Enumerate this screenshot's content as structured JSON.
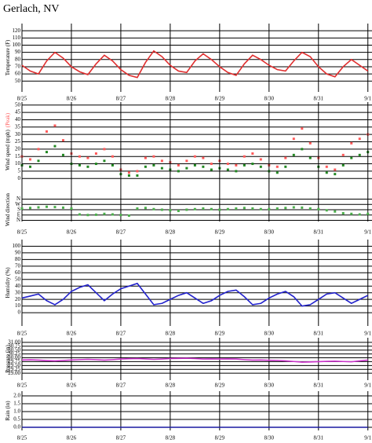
{
  "title": "Gerlach, NV",
  "chart_data": [
    {
      "type": "line",
      "ylabel": "Temperature (F)",
      "x": [
        0,
        4,
        8,
        12,
        16,
        20,
        24,
        28,
        32,
        36,
        40,
        44,
        48,
        52,
        56,
        60,
        64,
        68,
        72,
        76,
        80,
        84,
        88,
        92,
        96,
        100,
        104,
        108,
        112,
        116,
        120,
        124,
        128,
        132,
        136,
        140,
        144,
        148,
        152,
        156,
        160,
        164,
        168
      ],
      "series": [
        {
          "color": "#e03030",
          "values": [
            72,
            64,
            60,
            78,
            90,
            82,
            70,
            63,
            59,
            74,
            86,
            78,
            66,
            58,
            55,
            76,
            92,
            84,
            72,
            64,
            62,
            78,
            88,
            80,
            70,
            62,
            58,
            74,
            86,
            80,
            72,
            66,
            64,
            78,
            90,
            84,
            70,
            60,
            56,
            70,
            80,
            72,
            64
          ]
        }
      ],
      "xlim": [
        0,
        170
      ],
      "xticks": [
        {
          "value": 0,
          "label": "8/25"
        },
        {
          "value": 24,
          "label": "8/26"
        },
        {
          "value": 48,
          "label": "8/27"
        },
        {
          "value": 72,
          "label": "8/28"
        },
        {
          "value": 96,
          "label": "8/29"
        },
        {
          "value": 120,
          "label": "8/30"
        },
        {
          "value": 144,
          "label": "8/31"
        },
        {
          "value": 168,
          "label": "9/1"
        }
      ],
      "ylim": [
        35,
        130
      ],
      "yticks": [
        50,
        60,
        70,
        80,
        90,
        100,
        110,
        120
      ]
    },
    {
      "type": "scatter",
      "ylabel": "Wind speed (mph)",
      "x": [
        0,
        4,
        8,
        12,
        16,
        20,
        24,
        28,
        32,
        36,
        40,
        44,
        48,
        52,
        56,
        60,
        64,
        68,
        72,
        76,
        80,
        84,
        88,
        92,
        96,
        100,
        104,
        108,
        112,
        116,
        120,
        124,
        128,
        132,
        136,
        140,
        144,
        148,
        152,
        156,
        160,
        164,
        168
      ],
      "series": [
        {
          "color": "#228822",
          "values": [
            9,
            8,
            12,
            18,
            22,
            16,
            10,
            9,
            8,
            10,
            12,
            9,
            3,
            2,
            2,
            8,
            9,
            7,
            6,
            5,
            7,
            9,
            8,
            6,
            7,
            6,
            5,
            9,
            10,
            8,
            5,
            4,
            8,
            16,
            20,
            14,
            8,
            4,
            3,
            9,
            14,
            16,
            18
          ]
        },
        {
          "name": "(Peak)",
          "color": "#ff5a5a",
          "values": [
            15,
            13,
            20,
            32,
            36,
            26,
            17,
            15,
            14,
            17,
            20,
            15,
            6,
            4,
            5,
            14,
            15,
            12,
            11,
            9,
            12,
            15,
            14,
            10,
            12,
            10,
            9,
            15,
            17,
            13,
            9,
            8,
            14,
            27,
            34,
            24,
            14,
            8,
            6,
            16,
            24,
            27,
            30
          ]
        }
      ],
      "xlim": [
        0,
        170
      ],
      "ylim": [
        -2,
        52
      ],
      "yticks": [
        0,
        5,
        10,
        15,
        20,
        25,
        30,
        35,
        40,
        45,
        50
      ]
    },
    {
      "type": "scatter",
      "ylabel": "Wind direction",
      "x": [
        0,
        4,
        8,
        12,
        16,
        20,
        24,
        28,
        32,
        36,
        40,
        44,
        48,
        52,
        56,
        60,
        64,
        68,
        72,
        76,
        80,
        84,
        88,
        92,
        96,
        100,
        104,
        108,
        112,
        116,
        120,
        124,
        128,
        132,
        136,
        140,
        144,
        148,
        152,
        156,
        160,
        164,
        168
      ],
      "series": [
        {
          "color": "#4caf4c",
          "values": [
            200,
            210,
            220,
            230,
            225,
            215,
            200,
            100,
            90,
            95,
            110,
            100,
            90,
            80,
            200,
            210,
            190,
            180,
            170,
            160,
            180,
            190,
            200,
            190,
            180,
            190,
            200,
            210,
            200,
            190,
            190,
            200,
            210,
            220,
            215,
            200,
            190,
            170,
            150,
            120,
            110,
            100,
            110
          ]
        }
      ],
      "xlim": [
        0,
        170
      ],
      "xticks": [
        {
          "value": 0,
          "label": "8/25"
        },
        {
          "value": 24,
          "label": "8/26"
        },
        {
          "value": 48,
          "label": "8/27"
        },
        {
          "value": 72,
          "label": "8/28"
        },
        {
          "value": 96,
          "label": "8/29"
        },
        {
          "value": 120,
          "label": "8/30"
        },
        {
          "value": 144,
          "label": "8/31"
        },
        {
          "value": 168,
          "label": "9/1"
        }
      ],
      "ylim": [
        -20,
        380
      ],
      "yticks": [
        {
          "value": 0,
          "label": "N"
        },
        {
          "value": 90,
          "label": "E"
        },
        {
          "value": 180,
          "label": "S"
        },
        {
          "value": 270,
          "label": "W"
        },
        {
          "value": 360,
          "label": "N"
        }
      ]
    },
    {
      "type": "line",
      "ylabel": "Humidity (%)",
      "x": [
        0,
        4,
        8,
        12,
        16,
        20,
        24,
        28,
        32,
        36,
        40,
        44,
        48,
        52,
        56,
        60,
        64,
        68,
        72,
        76,
        80,
        84,
        88,
        92,
        96,
        100,
        104,
        108,
        112,
        116,
        120,
        124,
        128,
        132,
        136,
        140,
        144,
        148,
        152,
        156,
        160,
        164,
        168
      ],
      "series": [
        {
          "color": "#2222cc",
          "values": [
            22,
            25,
            28,
            18,
            12,
            20,
            32,
            38,
            42,
            30,
            18,
            28,
            36,
            40,
            44,
            28,
            12,
            14,
            20,
            26,
            30,
            22,
            14,
            18,
            26,
            32,
            34,
            24,
            12,
            14,
            22,
            28,
            32,
            24,
            10,
            12,
            20,
            28,
            30,
            22,
            14,
            20,
            26
          ]
        }
      ],
      "xlim": [
        0,
        170
      ],
      "xticks": [
        {
          "value": 0,
          "label": "8/25"
        },
        {
          "value": 24,
          "label": "8/26"
        },
        {
          "value": 48,
          "label": "8/27"
        },
        {
          "value": 72,
          "label": "8/28"
        },
        {
          "value": 96,
          "label": "8/29"
        },
        {
          "value": 120,
          "label": "8/30"
        },
        {
          "value": 144,
          "label": "8/31"
        },
        {
          "value": 168,
          "label": "9/1"
        }
      ],
      "ylim": [
        -20,
        110
      ],
      "yticks": [
        0,
        10,
        20,
        30,
        40,
        50,
        60,
        70,
        80,
        90,
        100
      ]
    },
    {
      "type": "line",
      "ylabel": "Pressure (in)",
      "x": [
        0,
        4,
        8,
        12,
        16,
        20,
        24,
        28,
        32,
        36,
        40,
        44,
        48,
        52,
        56,
        60,
        64,
        68,
        72,
        76,
        80,
        84,
        88,
        92,
        96,
        100,
        104,
        108,
        112,
        116,
        120,
        124,
        128,
        132,
        136,
        140,
        144,
        148,
        152,
        156,
        160,
        164,
        168
      ],
      "series": [
        {
          "color": "#cc33cc",
          "values": [
            29.86,
            29.87,
            29.85,
            29.82,
            29.8,
            29.83,
            29.86,
            29.88,
            29.9,
            29.88,
            29.85,
            29.88,
            29.92,
            29.94,
            29.95,
            29.93,
            29.9,
            29.92,
            29.95,
            29.96,
            29.97,
            29.95,
            29.92,
            29.93,
            29.92,
            29.93,
            29.92,
            29.88,
            29.85,
            29.86,
            29.84,
            29.83,
            29.8,
            29.76,
            29.72,
            29.73,
            29.75,
            29.77,
            29.78,
            29.76,
            29.74,
            29.8,
            29.85
          ]
        }
      ],
      "xlim": [
        0,
        170
      ],
      "xticks": [
        {
          "value": 0,
          "label": "8/25"
        },
        {
          "value": 24,
          "label": "8/26"
        },
        {
          "value": 48,
          "label": "8/27"
        },
        {
          "value": 72,
          "label": "8/28"
        },
        {
          "value": 96,
          "label": "8/29"
        },
        {
          "value": 120,
          "label": "8/30"
        },
        {
          "value": 144,
          "label": "8/31"
        },
        {
          "value": 168,
          "label": "9/1"
        }
      ],
      "ylim": [
        28.55,
        31.3
      ],
      "yticks": [
        {
          "value": 29,
          "label": "29.00"
        },
        29.25,
        {
          "value": 29.5,
          "label": "29.50"
        },
        29.75,
        {
          "value": 30,
          "label": "30.00"
        },
        30.25,
        {
          "value": 30.5,
          "label": "30.50"
        },
        30.75,
        {
          "value": 31,
          "label": "31.00"
        }
      ]
    },
    {
      "type": "line",
      "ylabel": "Rain (in)",
      "x": [
        0,
        4,
        8,
        12,
        16,
        20,
        24,
        28,
        32,
        36,
        40,
        44,
        48,
        52,
        56,
        60,
        64,
        68,
        72,
        76,
        80,
        84,
        88,
        92,
        96,
        100,
        104,
        108,
        112,
        116,
        120,
        124,
        128,
        132,
        136,
        140,
        144,
        148,
        152,
        156,
        160,
        164,
        168
      ],
      "series": [
        {
          "color": "#1a1aa0",
          "values": [
            0,
            0,
            0,
            0,
            0,
            0,
            0,
            0,
            0,
            0,
            0,
            0,
            0,
            0,
            0,
            0,
            0,
            0,
            0,
            0,
            0,
            0,
            0,
            0,
            0,
            0,
            0,
            0,
            0,
            0,
            0,
            0,
            0,
            0,
            0,
            0,
            0,
            0,
            0,
            0,
            0,
            0,
            0
          ]
        }
      ],
      "xlim": [
        0,
        170
      ],
      "xticks": [
        {
          "value": 0,
          "label": "8/25"
        },
        {
          "value": 24,
          "label": "8/26"
        },
        {
          "value": 48,
          "label": "8/27"
        },
        {
          "value": 72,
          "label": "8/28"
        },
        {
          "value": 96,
          "label": "8/29"
        },
        {
          "value": 120,
          "label": "8/30"
        },
        {
          "value": 144,
          "label": "8/31"
        },
        {
          "value": 168,
          "label": "9/1"
        }
      ],
      "ylim": [
        -0.2,
        2.3
      ],
      "yticks": [
        {
          "value": 0,
          "label": "0.0"
        },
        0.5,
        {
          "value": 1,
          "label": "1.0"
        },
        1.5,
        {
          "value": 2,
          "label": "2.0"
        }
      ]
    }
  ]
}
